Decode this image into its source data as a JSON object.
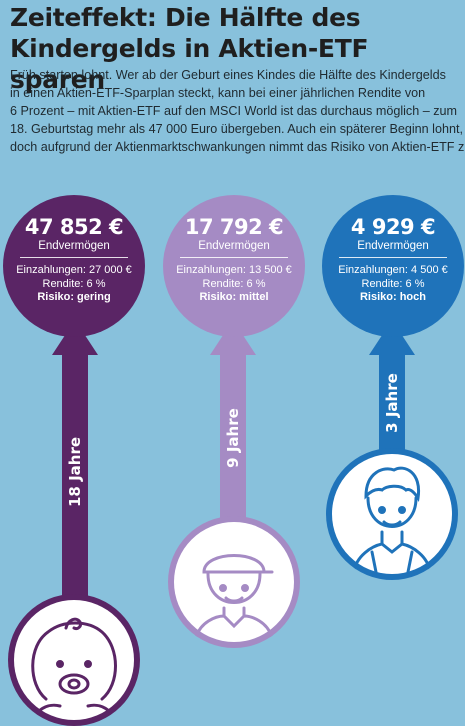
{
  "title_lines": [
    "Zeiteffekt: Die Hälfte des",
    "Kindergelds in Aktien-ETF sparen"
  ],
  "intro_lines": [
    "Früh starten lohnt. Wer ab der Geburt eines Kindes die Hälfte des Kindergelds",
    "in einen Aktien-ETF-Sparplan steckt, kann bei einer jährlichen Rendite von",
    "6 Prozent – mit Aktien-ETF auf den MSCI World ist das durchaus möglich – zum",
    "18. Geburtstag mehr als 47 000 Euro übergeben. Auch ein späterer Beginn lohnt,",
    "doch aufgrund der Aktienmarktschwankungen nimmt das Risiko von Aktien-ETF zu."
  ],
  "scenarios": [
    {
      "amount": "47 852 €",
      "label": "Endvermögen",
      "payments": "Einzahlungen: 27 000 €",
      "return": "Rendite: 6 %",
      "risk": "Risiko: gering",
      "duration": "18 Jahre",
      "color": "#5a2565",
      "avatar_icon": "baby-icon"
    },
    {
      "amount": "17 792 €",
      "label": "Endvermögen",
      "payments": "Einzahlungen: 13 500 €",
      "return": "Rendite: 6 %",
      "risk": "Risiko: mittel",
      "duration": "9 Jahre",
      "color": "#a58bc4",
      "avatar_icon": "child-icon"
    },
    {
      "amount": "4 929 €",
      "label": "Endvermögen",
      "payments": "Einzahlungen: 4 500 €",
      "return": "Rendite: 6 %",
      "risk": "Risiko: hoch",
      "duration": "3 Jahre",
      "color": "#1f73ba",
      "avatar_icon": "teen-icon"
    }
  ]
}
